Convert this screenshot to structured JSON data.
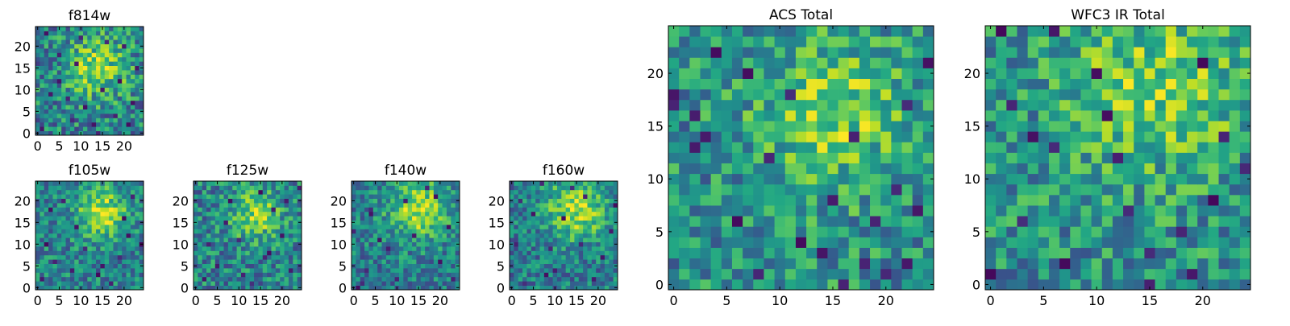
{
  "figure": {
    "colormap": "viridis",
    "background": "#ffffff"
  },
  "chart_data": [
    {
      "type": "heatmap",
      "title": "f814w",
      "grid_size": [
        25,
        25
      ],
      "xticks": [
        0,
        5,
        10,
        15,
        20
      ],
      "yticks": [
        0,
        5,
        10,
        15,
        20
      ],
      "bright_center": [
        14,
        15
      ],
      "bright_sigma": 5,
      "bright_amp": 0.35,
      "base": 0.45,
      "noise": 0.55,
      "dark_cells": [
        [
          1,
          1
        ],
        [
          3,
          9
        ],
        [
          5,
          18
        ],
        [
          8,
          3
        ],
        [
          9,
          16
        ],
        [
          11,
          6
        ],
        [
          13,
          2
        ],
        [
          15,
          10
        ],
        [
          18,
          4
        ],
        [
          19,
          12
        ],
        [
          20,
          20
        ],
        [
          22,
          7
        ],
        [
          23,
          15
        ],
        [
          10,
          22
        ],
        [
          16,
          21
        ],
        [
          5,
          12
        ],
        [
          2,
          23
        ],
        [
          14,
          0
        ],
        [
          21,
          2
        ],
        [
          7,
          8
        ]
      ],
      "seed": 11
    },
    {
      "type": "heatmap",
      "title": "f105w",
      "grid_size": [
        25,
        25
      ],
      "xticks": [
        0,
        5,
        10,
        15,
        20
      ],
      "yticks": [
        0,
        5,
        10,
        15,
        20
      ],
      "bright_center": [
        15,
        17
      ],
      "bright_sigma": 4,
      "bright_amp": 0.45,
      "base": 0.45,
      "noise": 0.45,
      "dark_cells": [
        [
          1,
          2
        ],
        [
          4,
          6
        ],
        [
          14,
          3
        ],
        [
          15,
          5
        ],
        [
          17,
          1
        ],
        [
          9,
          14
        ],
        [
          3,
          18
        ],
        [
          21,
          12
        ],
        [
          24,
          10
        ],
        [
          20,
          16
        ],
        [
          11,
          9
        ],
        [
          6,
          20
        ],
        [
          19,
          7
        ],
        [
          22,
          21
        ],
        [
          2,
          10
        ],
        [
          8,
          4
        ]
      ],
      "seed": 23
    },
    {
      "type": "heatmap",
      "title": "f125w",
      "grid_size": [
        25,
        25
      ],
      "xticks": [
        0,
        5,
        10,
        15,
        20
      ],
      "yticks": [
        0,
        5,
        10,
        15,
        20
      ],
      "bright_center": [
        14,
        17
      ],
      "bright_sigma": 4,
      "bright_amp": 0.4,
      "base": 0.45,
      "noise": 0.5,
      "dark_cells": [
        [
          5,
          5
        ],
        [
          16,
          7
        ],
        [
          17,
          8
        ],
        [
          24,
          23
        ],
        [
          8,
          20
        ],
        [
          11,
          3
        ],
        [
          20,
          12
        ],
        [
          3,
          10
        ],
        [
          22,
          4
        ],
        [
          7,
          15
        ],
        [
          18,
          18
        ],
        [
          13,
          1
        ],
        [
          2,
          2
        ],
        [
          21,
          20
        ],
        [
          10,
          11
        ],
        [
          15,
          22
        ]
      ],
      "seed": 37
    },
    {
      "type": "heatmap",
      "title": "f140w",
      "grid_size": [
        25,
        25
      ],
      "xticks": [
        0,
        5,
        10,
        15,
        20
      ],
      "yticks": [
        0,
        5,
        10,
        15,
        20
      ],
      "bright_center": [
        15,
        18
      ],
      "bright_sigma": 5,
      "bright_amp": 0.45,
      "base": 0.42,
      "noise": 0.45,
      "dark_cells": [
        [
          1,
          0
        ],
        [
          2,
          1
        ],
        [
          4,
          17
        ],
        [
          4,
          18
        ],
        [
          6,
          11
        ],
        [
          3,
          4
        ],
        [
          10,
          2
        ],
        [
          20,
          6
        ],
        [
          22,
          14
        ],
        [
          12,
          20
        ],
        [
          17,
          23
        ],
        [
          8,
          9
        ],
        [
          23,
          2
        ],
        [
          19,
          21
        ],
        [
          14,
          12
        ],
        [
          0,
          13
        ]
      ],
      "seed": 53
    },
    {
      "type": "heatmap",
      "title": "f160w",
      "grid_size": [
        25,
        25
      ],
      "xticks": [
        0,
        5,
        10,
        15,
        20
      ],
      "yticks": [
        0,
        5,
        10,
        15,
        20
      ],
      "bright_center": [
        15,
        18
      ],
      "bright_sigma": 5,
      "bright_amp": 0.45,
      "base": 0.42,
      "noise": 0.45,
      "dark_cells": [
        [
          3,
          1
        ],
        [
          8,
          3
        ],
        [
          10,
          4
        ],
        [
          7,
          24
        ],
        [
          14,
          23
        ],
        [
          1,
          10
        ],
        [
          5,
          17
        ],
        [
          21,
          7
        ],
        [
          23,
          13
        ],
        [
          12,
          16
        ],
        [
          17,
          21
        ],
        [
          2,
          20
        ],
        [
          19,
          2
        ],
        [
          9,
          9
        ],
        [
          24,
          19
        ],
        [
          16,
          10
        ]
      ],
      "seed": 71
    },
    {
      "type": "heatmap",
      "title": "ACS Total",
      "grid_size": [
        25,
        25
      ],
      "xticks": [
        0,
        5,
        10,
        15,
        20
      ],
      "yticks": [
        0,
        5,
        10,
        15,
        20
      ],
      "bright_center": [
        15,
        16
      ],
      "bright_sigma": 5,
      "bright_amp": 0.3,
      "base": 0.5,
      "noise": 0.5,
      "dark_cells": [
        [
          0,
          18
        ],
        [
          0,
          17
        ],
        [
          2,
          16
        ],
        [
          7,
          20
        ],
        [
          2,
          13
        ],
        [
          20,
          1
        ],
        [
          18,
          2
        ],
        [
          22,
          2
        ],
        [
          19,
          6
        ],
        [
          17,
          14
        ],
        [
          12,
          4
        ],
        [
          15,
          8
        ],
        [
          3,
          14
        ],
        [
          9,
          12
        ],
        [
          21,
          9
        ],
        [
          14,
          3
        ],
        [
          11,
          18
        ],
        [
          6,
          6
        ],
        [
          23,
          7
        ],
        [
          24,
          21
        ],
        [
          16,
          0
        ],
        [
          8,
          1
        ],
        [
          4,
          22
        ],
        [
          22,
          17
        ]
      ],
      "seed": 89
    },
    {
      "type": "heatmap",
      "title": "WFC3 IR Total",
      "grid_size": [
        25,
        25
      ],
      "xticks": [
        0,
        5,
        10,
        15,
        20
      ],
      "yticks": [
        0,
        5,
        10,
        15,
        20
      ],
      "bright_center": [
        16,
        19
      ],
      "bright_sigma": 6,
      "bright_amp": 0.3,
      "base": 0.5,
      "noise": 0.5,
      "dark_cells": [
        [
          1,
          24
        ],
        [
          6,
          24
        ],
        [
          4,
          14
        ],
        [
          24,
          11
        ],
        [
          0,
          1
        ],
        [
          15,
          3
        ],
        [
          15,
          0
        ],
        [
          2,
          17
        ],
        [
          6,
          13
        ],
        [
          18,
          5
        ],
        [
          11,
          16
        ],
        [
          21,
          8
        ],
        [
          7,
          2
        ],
        [
          12,
          12
        ],
        [
          20,
          21
        ],
        [
          3,
          6
        ],
        [
          10,
          20
        ],
        [
          19,
          1
        ],
        [
          22,
          14
        ],
        [
          13,
          7
        ]
      ],
      "seed": 97
    }
  ]
}
